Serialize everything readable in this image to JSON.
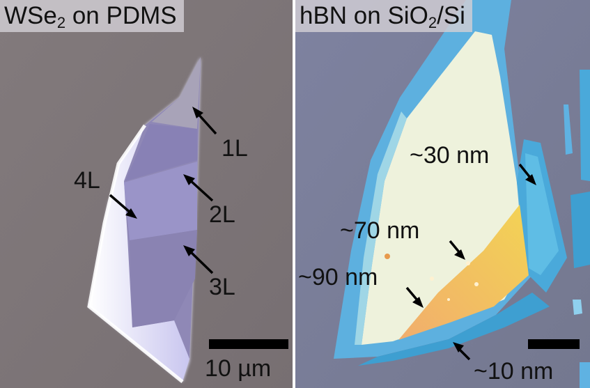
{
  "figure": {
    "left_panel": {
      "title_main": "WSe",
      "title_sub": "2",
      "title_rest": " on PDMS",
      "labels": [
        "1L",
        "2L",
        "3L",
        "4L"
      ],
      "scale_bar_label": "10 µm"
    },
    "right_panel": {
      "title_main": "hBN on SiO",
      "title_sub": "2",
      "title_rest": "/Si",
      "labels": [
        "~30 nm",
        "~70 nm",
        "~90 nm",
        "~10 nm"
      ]
    }
  },
  "colors": {
    "left_background": "#7e7678",
    "right_background": "#7a7e96",
    "flake_blue": "#5fb2e2",
    "flake_cream": "#eaf1dc",
    "flake_orange": "#e6a84a"
  }
}
